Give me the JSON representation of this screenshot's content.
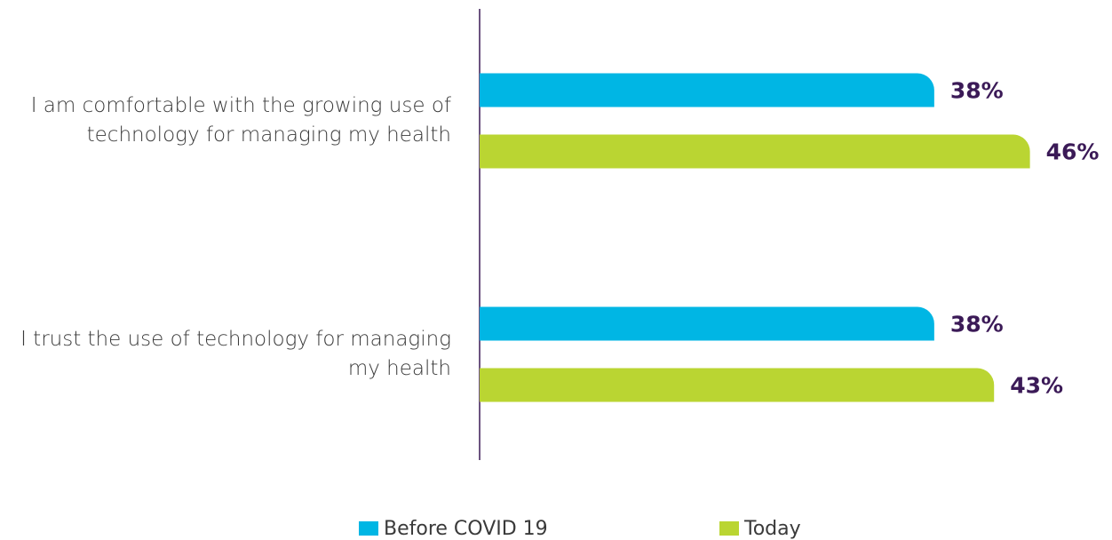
{
  "chart_data": {
    "type": "bar",
    "orientation": "horizontal",
    "categories": [
      "I am comfortable with the growing use of technology for managing my health",
      "I trust the use of technology for managing my health"
    ],
    "series": [
      {
        "name": "Before COVID 19",
        "color": "#00b6e4",
        "values": [
          38,
          38
        ],
        "value_labels": [
          "38%",
          "38%"
        ]
      },
      {
        "name": "Today",
        "color": "#bad532",
        "values": [
          46,
          43
        ],
        "value_labels": [
          "46%",
          "43%"
        ]
      }
    ],
    "xlim": [
      0,
      50
    ],
    "grid": false,
    "legend": "bottom"
  }
}
